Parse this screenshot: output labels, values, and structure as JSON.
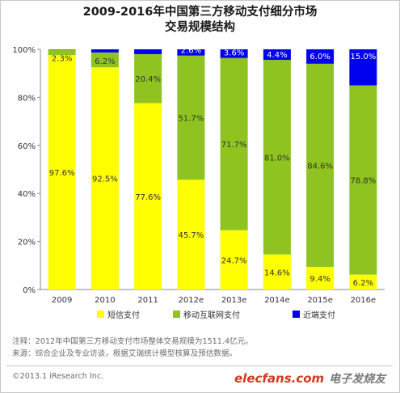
{
  "chart_data": {
    "type": "bar",
    "stacked": true,
    "title_lines": [
      "2009-2016年中国第三方移动支付细分市场",
      "交易规模结构"
    ],
    "categories": [
      "2009",
      "2010",
      "2011",
      "2012e",
      "2013e",
      "2014e",
      "2015e",
      "2016e"
    ],
    "series": [
      {
        "name": "短信支付",
        "color": "#ffff00",
        "values": [
          97.6,
          92.5,
          77.6,
          45.7,
          24.7,
          14.6,
          9.4,
          6.2
        ],
        "labels": [
          "97.6%",
          "92.5%",
          "77.6%",
          "45.7%",
          "24.7%",
          "14.6%",
          "9.4%",
          "6.2%"
        ]
      },
      {
        "name": "移动互联网支付",
        "color": "#8fc31f",
        "values": [
          2.3,
          6.2,
          20.4,
          51.7,
          71.7,
          81.0,
          84.6,
          78.8
        ],
        "labels": [
          "2.3%",
          "6.2%",
          "20.4%",
          "51.7%",
          "71.7%",
          "81.0%",
          "84.6%",
          "78.8%"
        ]
      },
      {
        "name": "近端支付",
        "color": "#0000ee",
        "values": [
          0.1,
          1.3,
          2.0,
          2.6,
          3.6,
          4.4,
          6.0,
          15.0
        ],
        "labels": [
          "",
          "",
          "",
          "2.6%",
          "3.6%",
          "4.4%",
          "6.0%",
          "15.0%"
        ]
      }
    ],
    "yticks": [
      "0%",
      "20%",
      "40%",
      "60%",
      "80%",
      "100%"
    ],
    "ylim": [
      0,
      100
    ],
    "legend_position": "bottom"
  },
  "notes": [
    "注释：2012年中国第三方移动支付市场整体交易规模为1511.4亿元。",
    "来源：综合企业及专业访谈，根据艾瑞统计模型核算及预估数据。"
  ],
  "copyright": "©2013.1 iResearch Inc.",
  "watermark": {
    "site": "elecfans.com",
    "cn": "电子发烧友"
  }
}
